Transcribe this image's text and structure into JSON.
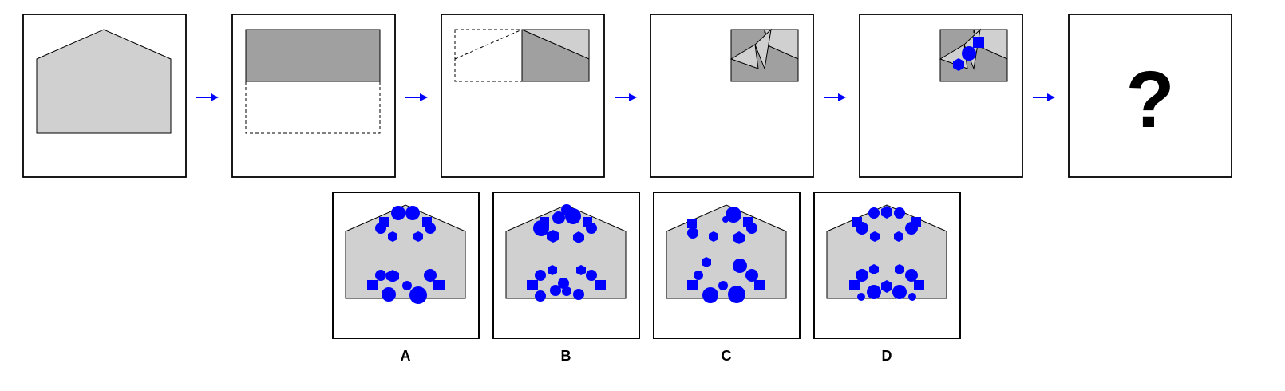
{
  "colors": {
    "paper": "#d0d0d0",
    "folded": "#a0a0a0",
    "outline": "#000000",
    "frame": "#000000",
    "arrow": "#0000ff",
    "hole": "#0000ff"
  },
  "question_mark": "?",
  "options": [
    {
      "label": "A"
    },
    {
      "label": "B"
    },
    {
      "label": "C"
    },
    {
      "label": "D"
    }
  ],
  "icons": {
    "arrow": "right-arrow-icon",
    "question": "question-mark-icon"
  }
}
